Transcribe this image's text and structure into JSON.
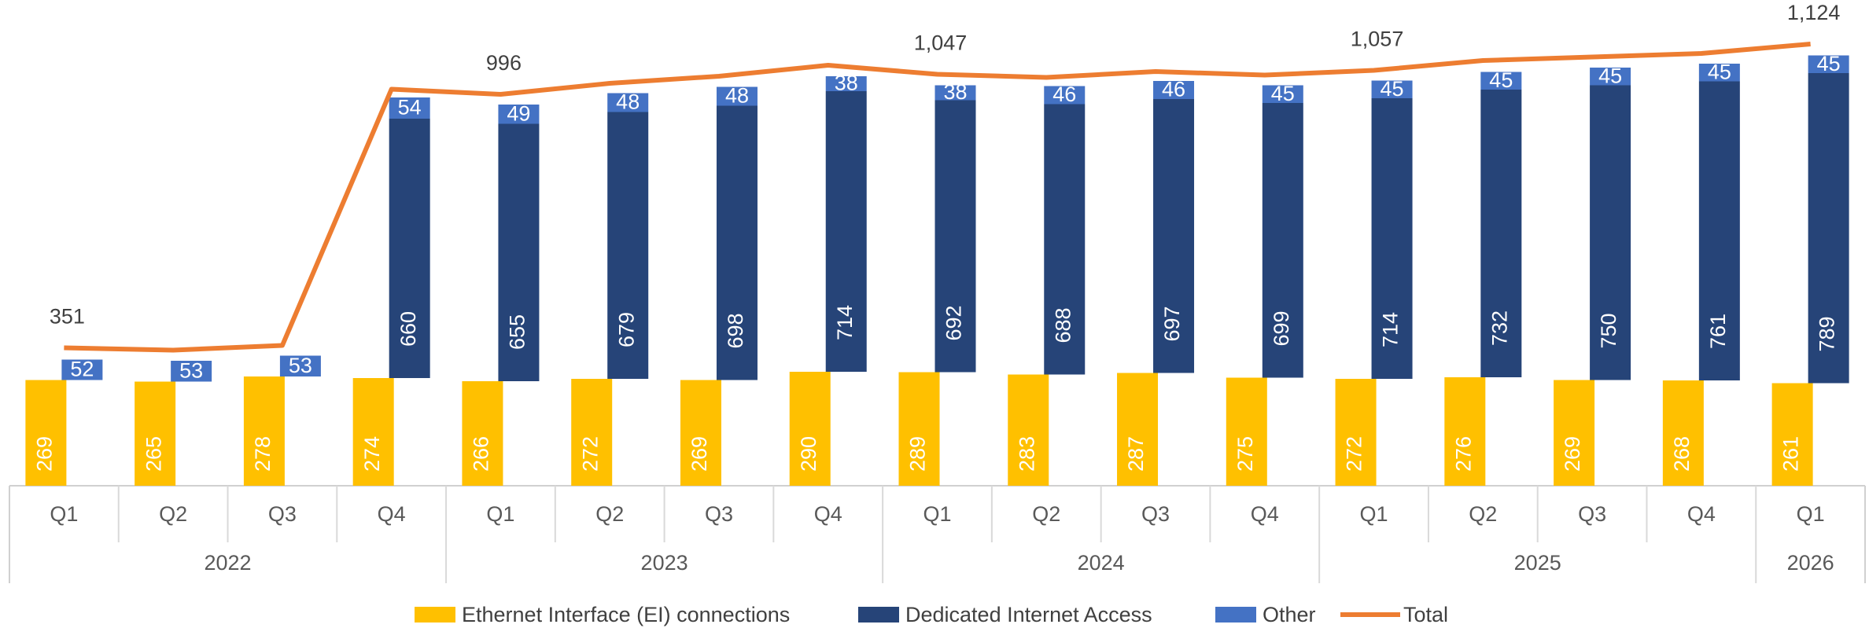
{
  "chart_data": {
    "type": "bar",
    "categories": [
      "Q1",
      "Q2",
      "Q3",
      "Q4",
      "Q1",
      "Q2",
      "Q3",
      "Q4",
      "Q1",
      "Q2",
      "Q3",
      "Q4",
      "Q1",
      "Q2",
      "Q3",
      "Q4",
      "Q1"
    ],
    "groups": [
      {
        "label": "2022",
        "count": 4
      },
      {
        "label": "2023",
        "count": 4
      },
      {
        "label": "2024",
        "count": 4
      },
      {
        "label": "2025",
        "count": 4
      },
      {
        "label": "2026",
        "count": 1
      }
    ],
    "ylim": [
      0,
      1236
    ],
    "series": [
      {
        "name": "Ethernet Interface (EI) connections",
        "color": "#FFC000",
        "values": [
          269,
          265,
          278,
          274,
          266,
          272,
          269,
          290,
          289,
          283,
          287,
          275,
          272,
          276,
          269,
          268,
          261
        ]
      },
      {
        "name": "Dedicated Internet Access",
        "color": "#264478",
        "values": [
          null,
          null,
          null,
          660,
          655,
          679,
          698,
          714,
          692,
          688,
          697,
          699,
          714,
          732,
          750,
          761,
          789
        ]
      },
      {
        "name": "Other",
        "color": "#4472C4",
        "values": [
          52,
          53,
          53,
          54,
          49,
          48,
          48,
          38,
          38,
          46,
          46,
          45,
          45,
          45,
          45,
          45,
          45
        ]
      },
      {
        "name": "Total",
        "color": "#ED7D31",
        "type": "line",
        "values": [
          351,
          345,
          357,
          1009,
          996,
          1024,
          1042,
          1070,
          1047,
          1039,
          1054,
          1045,
          1057,
          1082,
          1091,
          1100,
          1124
        ],
        "value_labels": [
          "351",
          null,
          null,
          null,
          "996",
          null,
          null,
          null,
          "1,047",
          null,
          null,
          null,
          "1,057",
          null,
          null,
          null,
          "1,124"
        ]
      }
    ]
  }
}
